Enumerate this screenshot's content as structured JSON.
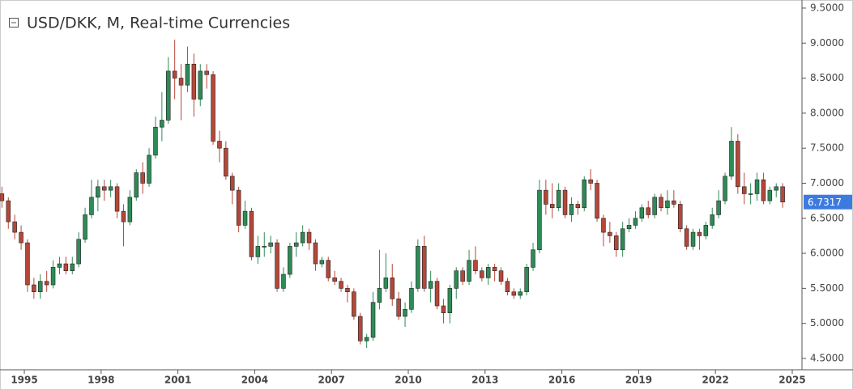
{
  "chart_data": {
    "type": "candlestick",
    "title": "USD/DKK, M, Real-time Currencies",
    "up_color": "#2e8b57",
    "down_color": "#b5473a",
    "price_tag_color": "#3d7ae0",
    "xlim": [
      1994.05,
      2025.38
    ],
    "ylim": [
      4.338,
      9.615
    ],
    "xticks": [
      1995,
      1998,
      2001,
      2004,
      2007,
      2010,
      2013,
      2016,
      2019,
      2022,
      2025
    ],
    "yticks": [
      {
        "value": 4.5,
        "label": "4.5000"
      },
      {
        "value": 5,
        "label": "5.0000"
      },
      {
        "value": 5.5,
        "label": "5.5000"
      },
      {
        "value": 6,
        "label": "6.0000"
      },
      {
        "value": 6.5,
        "label": "6.5000"
      },
      {
        "value": 7,
        "label": "7.0000"
      },
      {
        "value": 7.5,
        "label": "7.5000"
      },
      {
        "value": 8,
        "label": "8.0000"
      },
      {
        "value": 8.5,
        "label": "8.5000"
      },
      {
        "value": 9,
        "label": "9.0000"
      },
      {
        "value": 9.5,
        "label": "9.5000"
      }
    ],
    "x": [
      1994.125,
      1994.375,
      1994.625,
      1994.875,
      1995.125,
      1995.375,
      1995.625,
      1995.875,
      1996.125,
      1996.375,
      1996.625,
      1996.875,
      1997.125,
      1997.375,
      1997.625,
      1997.875,
      1998.125,
      1998.375,
      1998.625,
      1998.875,
      1999.125,
      1999.375,
      1999.625,
      1999.875,
      2000.125,
      2000.375,
      2000.625,
      2000.875,
      2001.125,
      2001.375,
      2001.625,
      2001.875,
      2002.125,
      2002.375,
      2002.625,
      2002.875,
      2003.125,
      2003.375,
      2003.625,
      2003.875,
      2004.125,
      2004.375,
      2004.625,
      2004.875,
      2005.125,
      2005.375,
      2005.625,
      2005.875,
      2006.125,
      2006.375,
      2006.625,
      2006.875,
      2007.125,
      2007.375,
      2007.625,
      2007.875,
      2008.125,
      2008.375,
      2008.625,
      2008.875,
      2009.125,
      2009.375,
      2009.625,
      2009.875,
      2010.125,
      2010.375,
      2010.625,
      2010.875,
      2011.125,
      2011.375,
      2011.625,
      2011.875,
      2012.125,
      2012.375,
      2012.625,
      2012.875,
      2013.125,
      2013.375,
      2013.625,
      2013.875,
      2014.125,
      2014.375,
      2014.625,
      2014.875,
      2015.125,
      2015.375,
      2015.625,
      2015.875,
      2016.125,
      2016.375,
      2016.625,
      2016.875,
      2017.125,
      2017.375,
      2017.625,
      2017.875,
      2018.125,
      2018.375,
      2018.625,
      2018.875,
      2019.125,
      2019.375,
      2019.625,
      2019.875,
      2020.125,
      2020.375,
      2020.625,
      2020.875,
      2021.125,
      2021.375,
      2021.625,
      2021.875,
      2022.125,
      2022.375,
      2022.625,
      2022.875,
      2023.125,
      2023.375,
      2023.625,
      2023.875,
      2024.125,
      2024.375,
      2024.625
    ],
    "open": [
      6.85,
      6.75,
      6.45,
      6.3,
      6.15,
      5.55,
      5.45,
      5.6,
      5.55,
      5.8,
      5.85,
      5.75,
      5.85,
      6.2,
      6.55,
      6.8,
      6.95,
      6.9,
      6.95,
      6.6,
      6.45,
      6.8,
      7.15,
      7.0,
      7.4,
      7.8,
      7.9,
      8.6,
      8.5,
      8.4,
      8.7,
      8.2,
      8.6,
      8.55,
      7.6,
      7.5,
      7.1,
      6.9,
      6.4,
      6.6,
      5.95,
      6.1,
      6.1,
      6.15,
      5.5,
      5.7,
      6.1,
      6.15,
      6.3,
      6.15,
      5.85,
      5.9,
      5.65,
      5.6,
      5.5,
      5.45,
      5.1,
      4.75,
      4.8,
      5.3,
      5.5,
      5.65,
      5.35,
      5.1,
      5.2,
      5.5,
      6.1,
      5.5,
      5.6,
      5.25,
      5.15,
      5.5,
      5.75,
      5.6,
      5.9,
      5.75,
      5.65,
      5.8,
      5.75,
      5.6,
      5.45,
      5.4,
      5.45,
      5.8,
      6.05,
      6.9,
      6.7,
      6.65,
      6.9,
      6.55,
      6.7,
      6.65,
      7.05,
      7.0,
      6.5,
      6.3,
      6.25,
      6.05,
      6.35,
      6.4,
      6.5,
      6.65,
      6.55,
      6.8,
      6.65,
      6.75,
      6.7,
      6.35,
      6.1,
      6.3,
      6.25,
      6.4,
      6.55,
      6.75,
      7.1,
      7.6,
      6.95,
      6.85,
      6.85,
      7.05,
      6.75,
      6.9,
      6.95
    ],
    "high": [
      6.95,
      6.8,
      6.55,
      6.4,
      6.2,
      5.65,
      5.7,
      5.75,
      5.9,
      5.95,
      5.95,
      5.95,
      6.3,
      6.65,
      7.05,
      7.05,
      7.05,
      7.05,
      7.0,
      6.7,
      6.9,
      7.2,
      7.3,
      7.5,
      7.95,
      8.3,
      8.8,
      9.05,
      8.7,
      8.95,
      8.85,
      8.7,
      8.7,
      8.6,
      7.75,
      7.6,
      7.15,
      6.95,
      6.75,
      6.65,
      6.25,
      6.3,
      6.25,
      6.2,
      5.8,
      6.15,
      6.3,
      6.4,
      6.35,
      6.2,
      5.95,
      5.95,
      5.75,
      5.65,
      5.55,
      5.5,
      5.15,
      4.85,
      5.45,
      6.05,
      6.0,
      5.85,
      5.45,
      5.3,
      5.6,
      6.2,
      6.25,
      5.75,
      5.65,
      5.35,
      5.55,
      5.8,
      5.8,
      6.05,
      6.1,
      5.8,
      5.85,
      5.85,
      5.8,
      5.65,
      5.5,
      5.5,
      5.85,
      6.15,
      7.05,
      7.05,
      7.0,
      7.0,
      6.95,
      6.8,
      6.75,
      7.1,
      7.2,
      7.05,
      6.55,
      6.45,
      6.3,
      6.45,
      6.5,
      6.6,
      6.7,
      6.75,
      6.85,
      6.85,
      6.9,
      6.9,
      6.75,
      6.4,
      6.35,
      6.35,
      6.45,
      6.65,
      6.9,
      7.15,
      7.8,
      7.7,
      7.15,
      7.0,
      7.15,
      7.15,
      6.95,
      7.0,
      7.0
    ],
    "low": [
      6.65,
      6.35,
      6.2,
      6.05,
      5.45,
      5.35,
      5.35,
      5.45,
      5.5,
      5.7,
      5.7,
      5.7,
      5.8,
      6.15,
      6.5,
      6.6,
      6.75,
      6.8,
      6.5,
      6.1,
      6.4,
      6.75,
      6.85,
      6.95,
      7.35,
      7.6,
      7.85,
      8.2,
      7.9,
      8.3,
      7.95,
      8.1,
      8.35,
      7.55,
      7.3,
      7.05,
      6.7,
      6.3,
      6.35,
      5.9,
      5.85,
      5.95,
      6.0,
      5.45,
      5.45,
      5.65,
      5.95,
      6.1,
      6.05,
      5.75,
      5.8,
      5.6,
      5.55,
      5.45,
      5.3,
      5.05,
      4.7,
      4.65,
      4.75,
      5.2,
      5.45,
      5.25,
      5.05,
      4.95,
      5.15,
      5.45,
      5.45,
      5.3,
      5.2,
      5.0,
      5.0,
      5.35,
      5.55,
      5.55,
      5.7,
      5.6,
      5.55,
      5.6,
      5.55,
      5.4,
      5.35,
      5.35,
      5.4,
      5.75,
      6.0,
      6.55,
      6.5,
      6.6,
      6.5,
      6.45,
      6.55,
      6.6,
      6.9,
      6.45,
      6.1,
      6.15,
      5.95,
      5.95,
      6.3,
      6.35,
      6.45,
      6.5,
      6.5,
      6.6,
      6.55,
      6.65,
      6.3,
      6.05,
      6.05,
      6.05,
      6.2,
      6.35,
      6.5,
      6.7,
      7.05,
      6.85,
      6.7,
      6.7,
      6.75,
      6.7,
      6.7,
      6.8,
      6.65
    ],
    "close": [
      6.75,
      6.45,
      6.3,
      6.15,
      5.55,
      5.45,
      5.6,
      5.55,
      5.8,
      5.85,
      5.75,
      5.85,
      6.2,
      6.55,
      6.8,
      6.95,
      6.9,
      6.95,
      6.6,
      6.45,
      6.8,
      7.15,
      7.0,
      7.4,
      7.8,
      7.9,
      8.6,
      8.5,
      8.4,
      8.7,
      8.2,
      8.6,
      8.55,
      7.6,
      7.5,
      7.1,
      6.9,
      6.4,
      6.6,
      5.95,
      6.1,
      6.1,
      6.15,
      5.5,
      5.7,
      6.1,
      6.15,
      6.3,
      6.15,
      5.85,
      5.9,
      5.65,
      5.6,
      5.5,
      5.45,
      5.1,
      4.75,
      4.8,
      5.3,
      5.5,
      5.65,
      5.35,
      5.1,
      5.2,
      5.5,
      6.1,
      5.5,
      5.6,
      5.25,
      5.15,
      5.5,
      5.75,
      5.6,
      5.9,
      5.75,
      5.65,
      5.8,
      5.75,
      5.6,
      5.45,
      5.4,
      5.45,
      5.8,
      6.05,
      6.9,
      6.7,
      6.65,
      6.9,
      6.55,
      6.7,
      6.65,
      7.05,
      7.0,
      6.5,
      6.3,
      6.25,
      6.05,
      6.35,
      6.4,
      6.5,
      6.65,
      6.55,
      6.8,
      6.65,
      6.75,
      6.7,
      6.35,
      6.1,
      6.3,
      6.25,
      6.4,
      6.55,
      6.75,
      7.1,
      7.6,
      6.95,
      6.85,
      6.85,
      7.05,
      6.75,
      6.9,
      6.95,
      6.7317
    ]
  }
}
